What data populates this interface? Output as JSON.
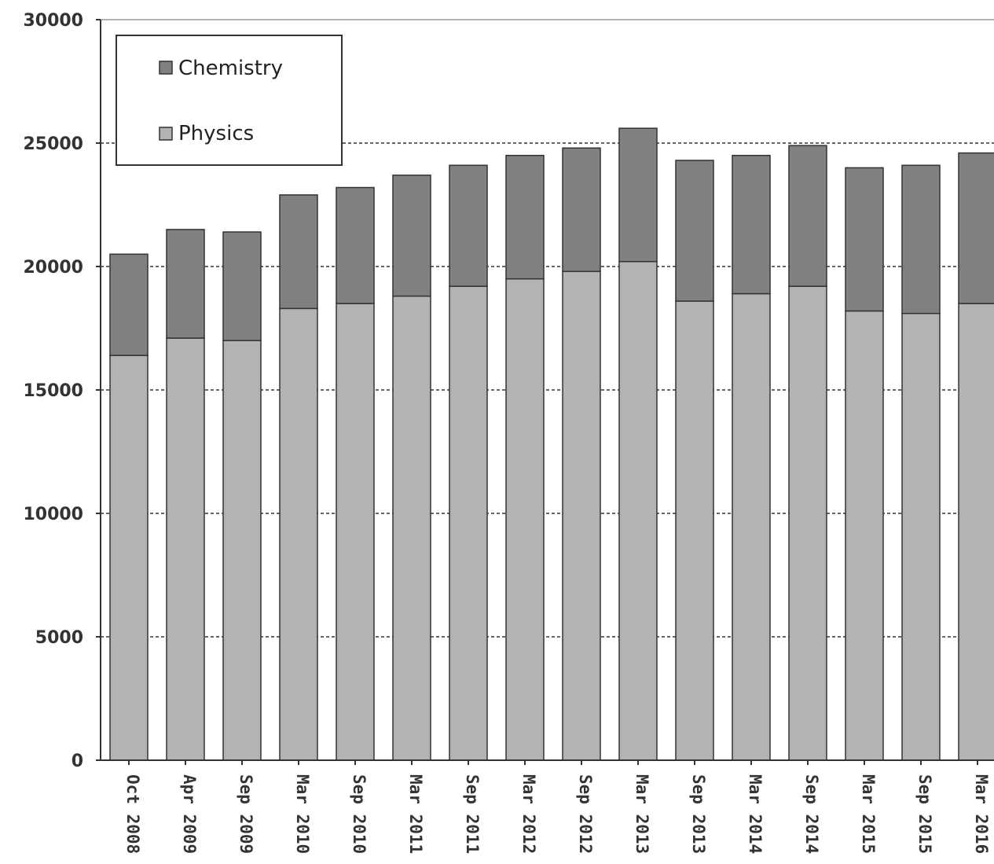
{
  "chart_data": {
    "type": "bar",
    "stacked": true,
    "title": "",
    "xlabel": "",
    "ylabel": "",
    "ylim": [
      0,
      30000
    ],
    "yticks": [
      0,
      5000,
      10000,
      15000,
      20000,
      25000,
      30000
    ],
    "grid": true,
    "legend_position": "top-left",
    "categories": [
      "Oct 2008",
      "Apr 2009",
      "Sep 2009",
      "Mar 2010",
      "Sep 2010",
      "Mar 2011",
      "Sep 2011",
      "Mar 2012",
      "Sep 2012",
      "Mar 2013",
      "Sep 2013",
      "Mar 2014",
      "Sep 2014",
      "Mar 2015",
      "Sep 2015",
      "Mar 2016"
    ],
    "series": [
      {
        "name": "Physics",
        "color": "#b3b3b3",
        "values": [
          16400,
          17100,
          17000,
          18300,
          18500,
          18800,
          19200,
          19500,
          19800,
          20200,
          18600,
          18900,
          19200,
          18200,
          18100,
          18500
        ]
      },
      {
        "name": "Chemistry",
        "color": "#808080",
        "values": [
          4100,
          4400,
          4400,
          4600,
          4700,
          4900,
          4900,
          5000,
          5000,
          5400,
          5700,
          5600,
          5700,
          5800,
          6000,
          6100
        ]
      }
    ],
    "legend": [
      "Chemistry",
      "Physics"
    ]
  }
}
